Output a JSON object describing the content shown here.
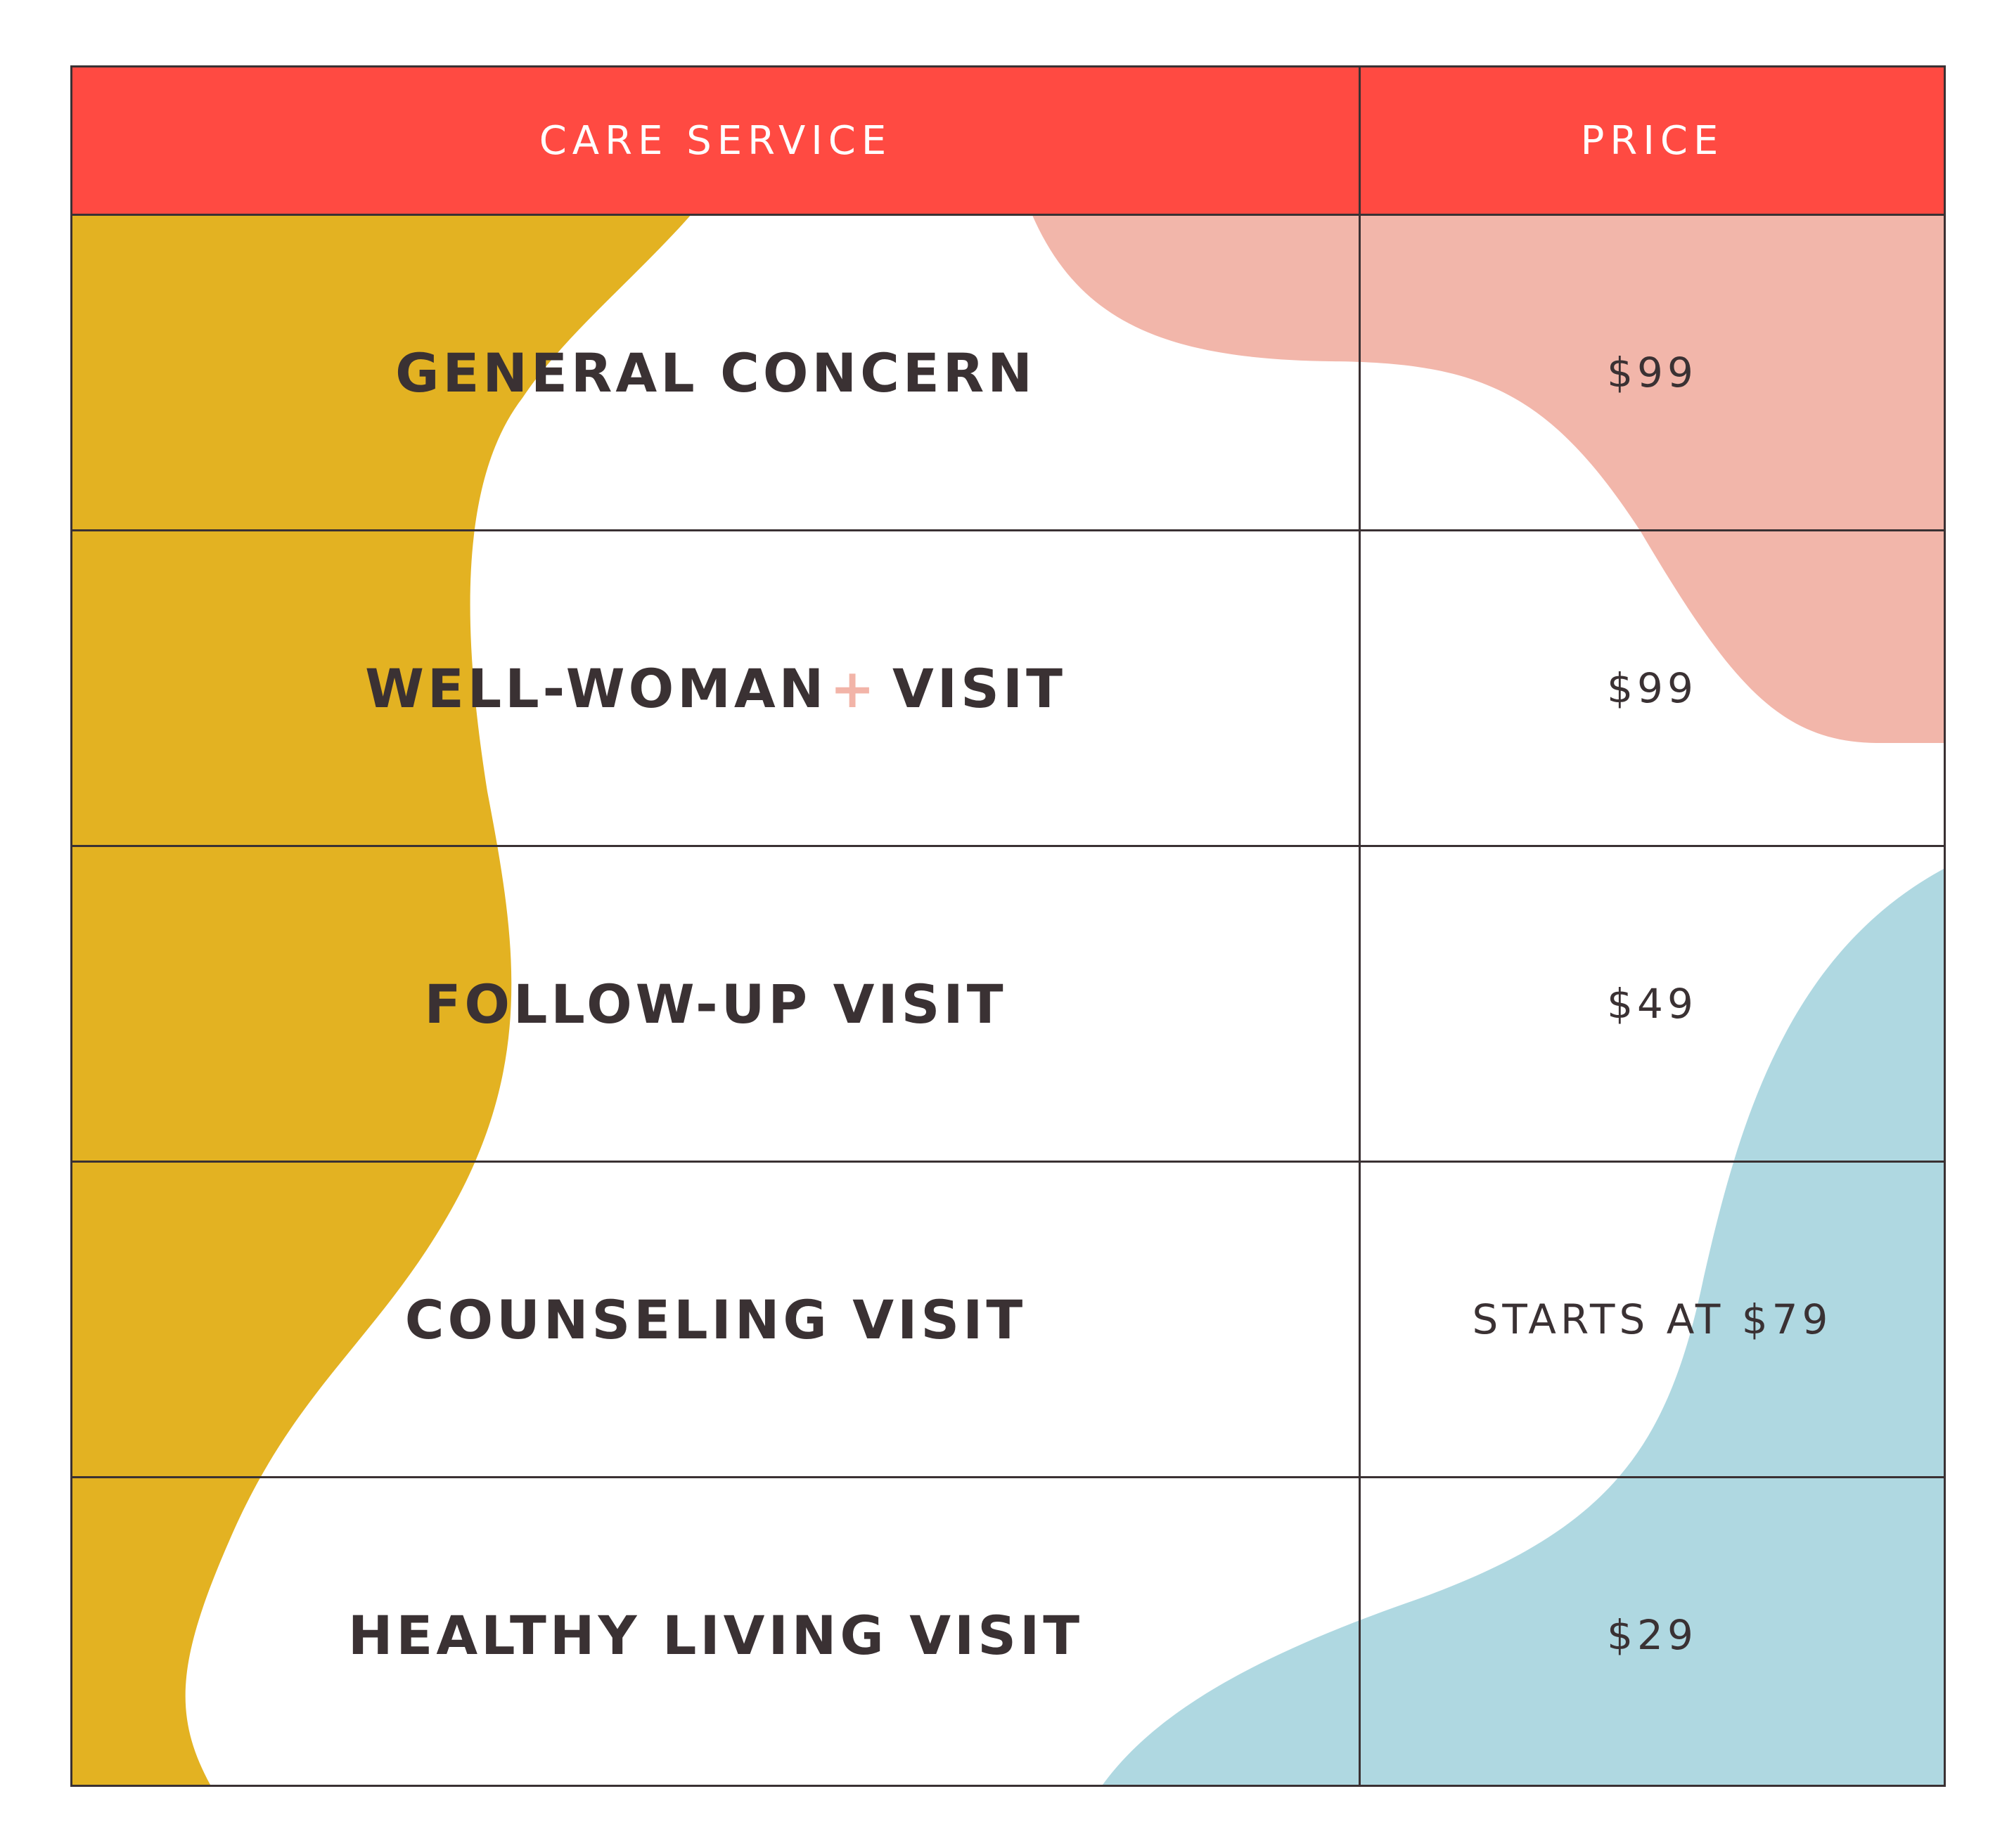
{
  "table": {
    "headers": {
      "service": "CARE SERVICE",
      "price": "PRICE"
    },
    "rows": [
      {
        "service": "GENERAL CONCERN",
        "price": "$99"
      },
      {
        "service": "WELL-WOMAN",
        "service_mark": "+",
        "service_suffix": "VISIT",
        "price": "$99"
      },
      {
        "service": "FOLLOW-UP VISIT",
        "price": "$49"
      },
      {
        "service": "COUNSELING VISIT",
        "price": "STARTS AT $79"
      },
      {
        "service": "HEALTHY LIVING VISIT",
        "price": "$29"
      }
    ]
  },
  "colors": {
    "header_background": "#ff4a42",
    "header_text": "#ffffff",
    "body_text": "#3a3133",
    "grid_lines": "#3a3133",
    "mustard_shape": "#e3b222",
    "pink_shape": "#f2b6aa",
    "blue_shape": "#afd8e1",
    "plus_mark": "#f2b4a8"
  }
}
